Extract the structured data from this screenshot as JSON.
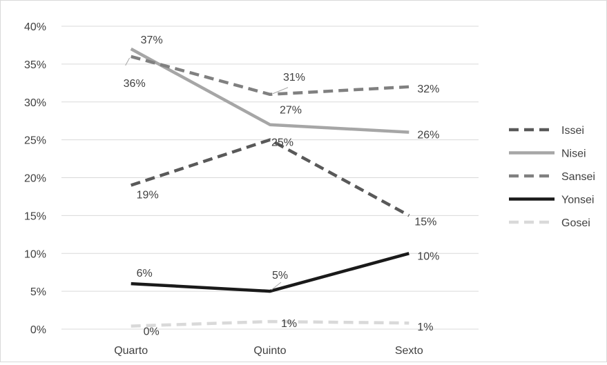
{
  "chart_data": {
    "type": "line",
    "categories": [
      "Quarto",
      "Quinto",
      "Sexto"
    ],
    "ylim": [
      0,
      40
    ],
    "yticks": [
      "0%",
      "5%",
      "10%",
      "15%",
      "20%",
      "25%",
      "30%",
      "35%",
      "40%"
    ],
    "grid": true,
    "legend_position": "right",
    "series": [
      {
        "name": "Issei",
        "values": [
          19,
          25,
          15
        ],
        "labels": [
          "19%",
          "25%",
          "15%"
        ],
        "color": "#595959",
        "dash": "dashed"
      },
      {
        "name": "Nisei",
        "values": [
          37,
          27,
          26
        ],
        "labels": [
          "37%",
          "27%",
          "26%"
        ],
        "color": "#a6a6a6",
        "dash": "solid"
      },
      {
        "name": "Sansei",
        "values": [
          36,
          31,
          32
        ],
        "labels": [
          "36%",
          "31%",
          "32%"
        ],
        "color": "#808080",
        "dash": "dashed"
      },
      {
        "name": "Yonsei",
        "values": [
          6,
          5,
          10
        ],
        "labels": [
          "6%",
          "5%",
          "10%"
        ],
        "color": "#1a1a1a",
        "dash": "solid"
      },
      {
        "name": "Gosei",
        "values": [
          0.4,
          1,
          0.8
        ],
        "labels": [
          "0%",
          "1%",
          "1%"
        ],
        "color": "#d9d9d9",
        "dash": "dashed"
      }
    ]
  }
}
